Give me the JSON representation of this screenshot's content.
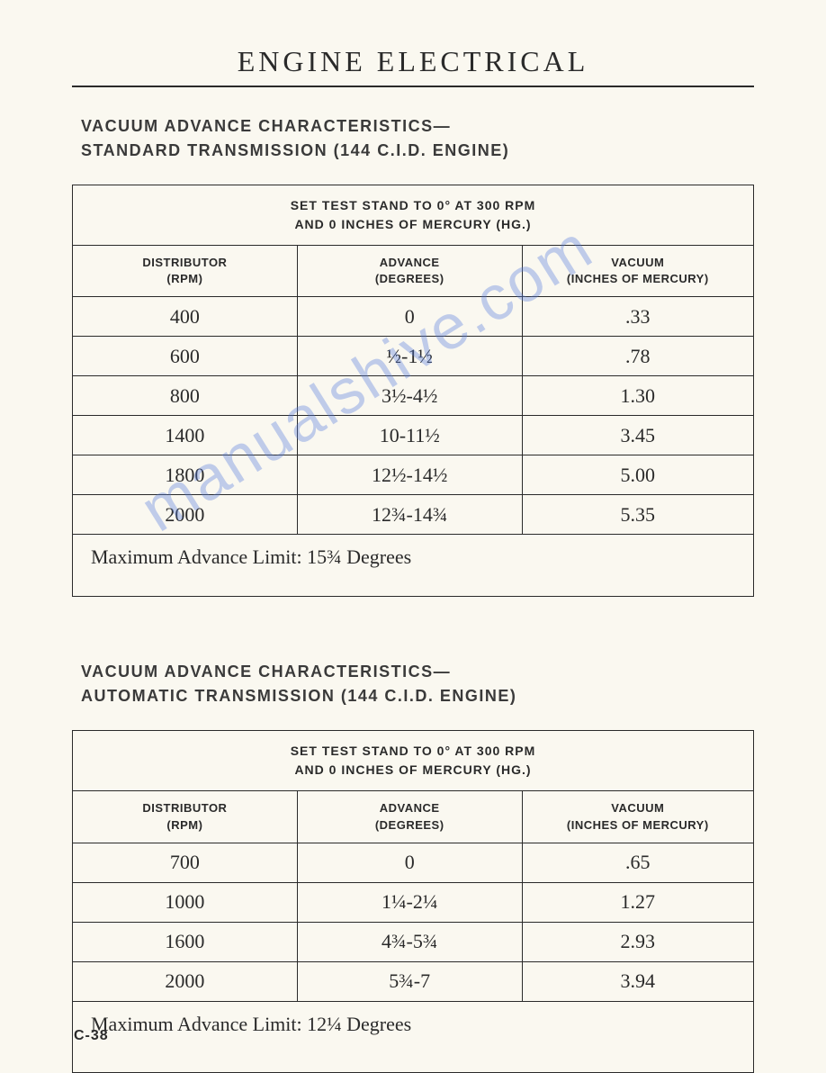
{
  "page": {
    "title": "ENGINE ELECTRICAL",
    "number": "C-38",
    "background_color": "#faf8f0",
    "text_color": "#2a2a2a",
    "title_fontsize": 32,
    "heading_fontsize": 18,
    "data_fontsize": 22
  },
  "section1": {
    "heading_line1": "VACUUM ADVANCE CHARACTERISTICS—",
    "heading_line2": "STANDARD TRANSMISSION (144 C.I.D. ENGINE)",
    "caption_line1": "SET TEST STAND TO 0° AT 300 RPM",
    "caption_line2": "AND 0 INCHES OF MERCURY (HG.)",
    "columns": [
      {
        "line1": "DISTRIBUTOR",
        "line2": "(RPM)"
      },
      {
        "line1": "ADVANCE",
        "line2": "(DEGREES)"
      },
      {
        "line1": "VACUUM",
        "line2": "(INCHES OF MERCURY)"
      }
    ],
    "rows": [
      {
        "rpm": "400",
        "advance": "0",
        "vacuum": ".33"
      },
      {
        "rpm": "600",
        "advance": "½-1½",
        "vacuum": ".78"
      },
      {
        "rpm": "800",
        "advance": "3½-4½",
        "vacuum": "1.30"
      },
      {
        "rpm": "1400",
        "advance": "10-11½",
        "vacuum": "3.45"
      },
      {
        "rpm": "1800",
        "advance": "12½-14½",
        "vacuum": "5.00"
      },
      {
        "rpm": "2000",
        "advance": "12¾-14¾",
        "vacuum": "5.35"
      }
    ],
    "footer": "Maximum Advance Limit: 15¾ Degrees"
  },
  "section2": {
    "heading_line1": "VACUUM ADVANCE CHARACTERISTICS—",
    "heading_line2": "AUTOMATIC TRANSMISSION (144 C.I.D. ENGINE)",
    "caption_line1": "SET TEST STAND TO 0° AT 300 RPM",
    "caption_line2": "AND 0 INCHES OF MERCURY (HG.)",
    "columns": [
      {
        "line1": "DISTRIBUTOR",
        "line2": "(RPM)"
      },
      {
        "line1": "ADVANCE",
        "line2": "(DEGREES)"
      },
      {
        "line1": "VACUUM",
        "line2": "(INCHES OF MERCURY)"
      }
    ],
    "rows": [
      {
        "rpm": "700",
        "advance": "0",
        "vacuum": ".65"
      },
      {
        "rpm": "1000",
        "advance": "1¼-2¼",
        "vacuum": "1.27"
      },
      {
        "rpm": "1600",
        "advance": "4¾-5¾",
        "vacuum": "2.93"
      },
      {
        "rpm": "2000",
        "advance": "5¾-7",
        "vacuum": "3.94"
      }
    ],
    "footer": "Maximum Advance Limit: 12¼ Degrees"
  },
  "watermark": {
    "text": "manualshive.com",
    "color": "rgba(80,120,220,0.35)",
    "fontsize": 70,
    "rotation_deg": -32
  }
}
